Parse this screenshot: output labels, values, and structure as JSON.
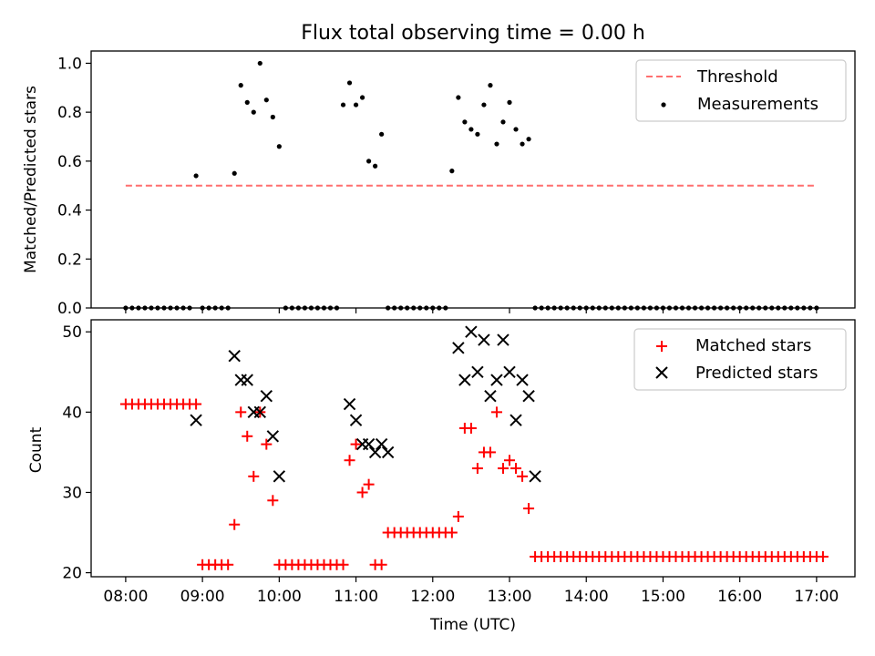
{
  "chart_data": [
    {
      "type": "scatter",
      "title": "Flux total observing time = 0.00 h",
      "xlabel": "",
      "ylabel": "Matched/Predicted stars",
      "ylim": [
        0.0,
        1.05
      ],
      "yticks": [
        "0.0",
        "0.2",
        "0.4",
        "0.6",
        "0.8",
        "1.0"
      ],
      "xlim_hours": [
        7.55,
        17.5
      ],
      "legend_placement": "top-right",
      "grid": false,
      "threshold": {
        "name": "Threshold",
        "value": 0.5,
        "x_start": "08:00",
        "x_end": "17:00",
        "color": "#ff6f6f"
      },
      "series": [
        {
          "name": "Measurements",
          "color": "#000000",
          "points": [
            [
              "08:00",
              0
            ],
            [
              "08:05",
              0
            ],
            [
              "08:10",
              0
            ],
            [
              "08:15",
              0
            ],
            [
              "08:20",
              0
            ],
            [
              "08:25",
              0
            ],
            [
              "08:30",
              0
            ],
            [
              "08:35",
              0
            ],
            [
              "08:40",
              0
            ],
            [
              "08:45",
              0
            ],
            [
              "08:50",
              0
            ],
            [
              "08:55",
              0.54
            ],
            [
              "09:00",
              0
            ],
            [
              "09:05",
              0
            ],
            [
              "09:10",
              0
            ],
            [
              "09:15",
              0
            ],
            [
              "09:20",
              0
            ],
            [
              "09:25",
              0.55
            ],
            [
              "09:30",
              0.91
            ],
            [
              "09:35",
              0.84
            ],
            [
              "09:40",
              0.8
            ],
            [
              "09:45",
              1.0
            ],
            [
              "09:50",
              0.85
            ],
            [
              "09:55",
              0.78
            ],
            [
              "10:00",
              0.66
            ],
            [
              "10:05",
              0
            ],
            [
              "10:10",
              0
            ],
            [
              "10:15",
              0
            ],
            [
              "10:20",
              0
            ],
            [
              "10:25",
              0
            ],
            [
              "10:30",
              0
            ],
            [
              "10:35",
              0
            ],
            [
              "10:40",
              0
            ],
            [
              "10:45",
              0
            ],
            [
              "10:50",
              0.83
            ],
            [
              "10:55",
              0.92
            ],
            [
              "11:00",
              0.83
            ],
            [
              "11:05",
              0.86
            ],
            [
              "11:10",
              0.6
            ],
            [
              "11:15",
              0.58
            ],
            [
              "11:20",
              0.71
            ],
            [
              "11:25",
              0
            ],
            [
              "11:30",
              0
            ],
            [
              "11:35",
              0
            ],
            [
              "11:40",
              0
            ],
            [
              "11:45",
              0
            ],
            [
              "11:50",
              0
            ],
            [
              "11:55",
              0
            ],
            [
              "12:00",
              0
            ],
            [
              "12:05",
              0
            ],
            [
              "12:10",
              0
            ],
            [
              "12:15",
              0.56
            ],
            [
              "12:20",
              0.86
            ],
            [
              "12:25",
              0.76
            ],
            [
              "12:30",
              0.73
            ],
            [
              "12:35",
              0.71
            ],
            [
              "12:40",
              0.83
            ],
            [
              "12:45",
              0.91
            ],
            [
              "12:50",
              0.67
            ],
            [
              "12:55",
              0.76
            ],
            [
              "13:00",
              0.84
            ],
            [
              "13:05",
              0.73
            ],
            [
              "13:10",
              0.67
            ],
            [
              "13:15",
              0.69
            ],
            [
              "13:20",
              0
            ],
            [
              "13:25",
              0
            ],
            [
              "13:30",
              0
            ],
            [
              "13:35",
              0
            ],
            [
              "13:40",
              0
            ],
            [
              "13:45",
              0
            ],
            [
              "13:50",
              0
            ],
            [
              "13:55",
              0
            ],
            [
              "14:00",
              0
            ],
            [
              "14:05",
              0
            ],
            [
              "14:10",
              0
            ],
            [
              "14:15",
              0
            ],
            [
              "14:20",
              0
            ],
            [
              "14:25",
              0
            ],
            [
              "14:30",
              0
            ],
            [
              "14:35",
              0
            ],
            [
              "14:40",
              0
            ],
            [
              "14:45",
              0
            ],
            [
              "14:50",
              0
            ],
            [
              "14:55",
              0
            ],
            [
              "15:00",
              0
            ],
            [
              "15:05",
              0
            ],
            [
              "15:10",
              0
            ],
            [
              "15:15",
              0
            ],
            [
              "15:20",
              0
            ],
            [
              "15:25",
              0
            ],
            [
              "15:30",
              0
            ],
            [
              "15:35",
              0
            ],
            [
              "15:40",
              0
            ],
            [
              "15:45",
              0
            ],
            [
              "15:50",
              0
            ],
            [
              "15:55",
              0
            ],
            [
              "16:00",
              0
            ],
            [
              "16:05",
              0
            ],
            [
              "16:10",
              0
            ],
            [
              "16:15",
              0
            ],
            [
              "16:20",
              0
            ],
            [
              "16:25",
              0
            ],
            [
              "16:30",
              0
            ],
            [
              "16:35",
              0
            ],
            [
              "16:40",
              0
            ],
            [
              "16:45",
              0
            ],
            [
              "16:50",
              0
            ],
            [
              "16:55",
              0
            ],
            [
              "17:00",
              0
            ]
          ]
        }
      ]
    },
    {
      "type": "scatter",
      "title": "",
      "xlabel": "Time (UTC)",
      "ylabel": "Count",
      "ylim": [
        19.5,
        51.5
      ],
      "yticks": [
        "20",
        "30",
        "40",
        "50"
      ],
      "xticks": [
        "08:00",
        "09:00",
        "10:00",
        "11:00",
        "12:00",
        "13:00",
        "14:00",
        "15:00",
        "16:00",
        "17:00"
      ],
      "xlim_hours": [
        7.55,
        17.5
      ],
      "legend_placement": "top-right",
      "grid": false,
      "series": [
        {
          "name": "Matched stars",
          "marker": "+",
          "color": "#ff0000",
          "points": [
            [
              "08:00",
              41
            ],
            [
              "08:05",
              41
            ],
            [
              "08:10",
              41
            ],
            [
              "08:15",
              41
            ],
            [
              "08:20",
              41
            ],
            [
              "08:25",
              41
            ],
            [
              "08:30",
              41
            ],
            [
              "08:35",
              41
            ],
            [
              "08:40",
              41
            ],
            [
              "08:45",
              41
            ],
            [
              "08:50",
              41
            ],
            [
              "08:55",
              41
            ],
            [
              "09:00",
              21
            ],
            [
              "09:05",
              21
            ],
            [
              "09:10",
              21
            ],
            [
              "09:15",
              21
            ],
            [
              "09:20",
              21
            ],
            [
              "09:25",
              26
            ],
            [
              "09:30",
              40
            ],
            [
              "09:35",
              37
            ],
            [
              "09:40",
              32
            ],
            [
              "09:45",
              40
            ],
            [
              "09:50",
              36
            ],
            [
              "09:55",
              29
            ],
            [
              "10:00",
              21
            ],
            [
              "10:05",
              21
            ],
            [
              "10:10",
              21
            ],
            [
              "10:15",
              21
            ],
            [
              "10:20",
              21
            ],
            [
              "10:25",
              21
            ],
            [
              "10:30",
              21
            ],
            [
              "10:35",
              21
            ],
            [
              "10:40",
              21
            ],
            [
              "10:45",
              21
            ],
            [
              "10:50",
              21
            ],
            [
              "10:55",
              34
            ],
            [
              "11:00",
              36
            ],
            [
              "11:05",
              30
            ],
            [
              "11:10",
              31
            ],
            [
              "11:15",
              21
            ],
            [
              "11:20",
              21
            ],
            [
              "11:25",
              25
            ],
            [
              "11:30",
              25
            ],
            [
              "11:35",
              25
            ],
            [
              "11:40",
              25
            ],
            [
              "11:45",
              25
            ],
            [
              "11:50",
              25
            ],
            [
              "11:55",
              25
            ],
            [
              "12:00",
              25
            ],
            [
              "12:05",
              25
            ],
            [
              "12:10",
              25
            ],
            [
              "12:15",
              25
            ],
            [
              "12:20",
              27
            ],
            [
              "12:25",
              38
            ],
            [
              "12:30",
              38
            ],
            [
              "12:35",
              33
            ],
            [
              "12:40",
              35
            ],
            [
              "12:45",
              35
            ],
            [
              "12:50",
              40
            ],
            [
              "12:55",
              33
            ],
            [
              "13:00",
              34
            ],
            [
              "13:05",
              33
            ],
            [
              "13:10",
              32
            ],
            [
              "13:15",
              28
            ],
            [
              "13:20",
              22
            ],
            [
              "13:25",
              22
            ],
            [
              "13:30",
              22
            ],
            [
              "13:35",
              22
            ],
            [
              "13:40",
              22
            ],
            [
              "13:45",
              22
            ],
            [
              "13:50",
              22
            ],
            [
              "13:55",
              22
            ],
            [
              "14:00",
              22
            ],
            [
              "14:05",
              22
            ],
            [
              "14:10",
              22
            ],
            [
              "14:15",
              22
            ],
            [
              "14:20",
              22
            ],
            [
              "14:25",
              22
            ],
            [
              "14:30",
              22
            ],
            [
              "14:35",
              22
            ],
            [
              "14:40",
              22
            ],
            [
              "14:45",
              22
            ],
            [
              "14:50",
              22
            ],
            [
              "14:55",
              22
            ],
            [
              "15:00",
              22
            ],
            [
              "15:05",
              22
            ],
            [
              "15:10",
              22
            ],
            [
              "15:15",
              22
            ],
            [
              "15:20",
              22
            ],
            [
              "15:25",
              22
            ],
            [
              "15:30",
              22
            ],
            [
              "15:35",
              22
            ],
            [
              "15:40",
              22
            ],
            [
              "15:45",
              22
            ],
            [
              "15:50",
              22
            ],
            [
              "15:55",
              22
            ],
            [
              "16:00",
              22
            ],
            [
              "16:05",
              22
            ],
            [
              "16:10",
              22
            ],
            [
              "16:15",
              22
            ],
            [
              "16:20",
              22
            ],
            [
              "16:25",
              22
            ],
            [
              "16:30",
              22
            ],
            [
              "16:35",
              22
            ],
            [
              "16:40",
              22
            ],
            [
              "16:45",
              22
            ],
            [
              "16:50",
              22
            ],
            [
              "16:55",
              22
            ],
            [
              "17:00",
              22
            ],
            [
              "17:05",
              22
            ]
          ]
        },
        {
          "name": "Predicted stars",
          "marker": "x",
          "color": "#000000",
          "points": [
            [
              "08:55",
              39
            ],
            [
              "09:25",
              47
            ],
            [
              "09:30",
              44
            ],
            [
              "09:35",
              44
            ],
            [
              "09:40",
              40
            ],
            [
              "09:45",
              40
            ],
            [
              "09:50",
              42
            ],
            [
              "09:55",
              37
            ],
            [
              "10:00",
              32
            ],
            [
              "10:55",
              41
            ],
            [
              "11:00",
              39
            ],
            [
              "11:05",
              36
            ],
            [
              "11:10",
              36
            ],
            [
              "11:15",
              35
            ],
            [
              "11:20",
              36
            ],
            [
              "11:25",
              35
            ],
            [
              "12:20",
              48
            ],
            [
              "12:25",
              44
            ],
            [
              "12:30",
              50
            ],
            [
              "12:35",
              45
            ],
            [
              "12:40",
              49
            ],
            [
              "12:45",
              42
            ],
            [
              "12:50",
              44
            ],
            [
              "12:55",
              49
            ],
            [
              "13:00",
              45
            ],
            [
              "13:05",
              39
            ],
            [
              "13:10",
              44
            ],
            [
              "13:15",
              42
            ],
            [
              "13:20",
              32
            ]
          ]
        }
      ]
    }
  ]
}
